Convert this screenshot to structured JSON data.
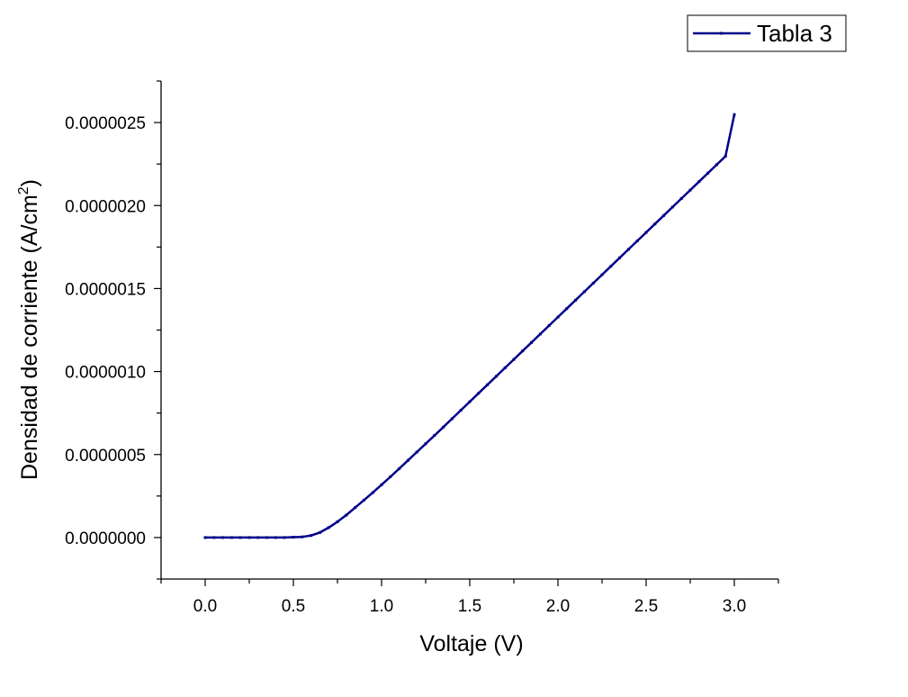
{
  "chart_data": {
    "type": "line",
    "title": "",
    "xlabel": "Voltaje (V)",
    "ylabel": {
      "main": "Densidad de corriente (A/cm",
      "superscript": "2",
      "suffix": ")"
    },
    "xlim": [
      -0.25,
      3.25
    ],
    "ylim": [
      -2.5e-07,
      2.75e-06
    ],
    "x_ticks": [
      0.0,
      0.5,
      1.0,
      1.5,
      2.0,
      2.5,
      3.0
    ],
    "x_tick_labels": [
      "0.0",
      "0.5",
      "1.0",
      "1.5",
      "2.0",
      "2.5",
      "3.0"
    ],
    "y_ticks": [
      0.0,
      5e-07,
      1e-06,
      1.5e-06,
      2e-06,
      2.5e-06
    ],
    "y_tick_labels": [
      "0.0000000",
      "0.0000005",
      "0.0000010",
      "0.0000015",
      "0.0000020",
      "0.0000025"
    ],
    "grid": false,
    "legend_position": "top-right",
    "series": [
      {
        "name": "Tabla 3",
        "color": "#00008B",
        "marker": "small-square",
        "x": [
          0.0,
          0.05,
          0.1,
          0.15,
          0.2,
          0.25,
          0.3,
          0.35,
          0.4,
          0.45,
          0.5,
          0.55,
          0.6,
          0.65,
          0.7,
          0.75,
          0.8,
          0.85,
          0.9,
          0.95,
          1.0,
          1.05,
          1.1,
          1.15,
          1.2,
          1.25,
          1.3,
          1.35,
          1.4,
          1.45,
          1.5,
          1.55,
          1.6,
          1.65,
          1.7,
          1.75,
          1.8,
          1.85,
          1.9,
          1.95,
          2.0,
          2.05,
          2.1,
          2.15,
          2.2,
          2.25,
          2.3,
          2.35,
          2.4,
          2.45,
          2.5,
          2.55,
          2.6,
          2.65,
          2.7,
          2.75,
          2.8,
          2.85,
          2.9,
          2.95,
          3.0
        ],
        "y": [
          0.0,
          0.0,
          0.0,
          0.0,
          0.0,
          0.0,
          0.0,
          0.0,
          0.0,
          0.0,
          2e-09,
          4e-09,
          1.2e-08,
          3e-08,
          6e-08,
          9.5e-08,
          1.35e-07,
          1.8e-07,
          2.25e-07,
          2.7e-07,
          3.18e-07,
          3.66e-07,
          4.15e-07,
          4.65e-07,
          5.15e-07,
          5.65e-07,
          6.15e-07,
          6.65e-07,
          7.16e-07,
          7.67e-07,
          8.18e-07,
          8.69e-07,
          9.2e-07,
          9.71e-07,
          1.022e-06,
          1.073e-06,
          1.124e-06,
          1.175e-06,
          1.226e-06,
          1.277e-06,
          1.328e-06,
          1.379e-06,
          1.43e-06,
          1.481e-06,
          1.532e-06,
          1.583e-06,
          1.634e-06,
          1.685e-06,
          1.736e-06,
          1.787e-06,
          1.838e-06,
          1.889e-06,
          1.94e-06,
          1.991e-06,
          2.042e-06,
          2.093e-06,
          2.144e-06,
          2.195e-06,
          2.246e-06,
          2.297e-06,
          2.548e-06
        ]
      }
    ]
  }
}
